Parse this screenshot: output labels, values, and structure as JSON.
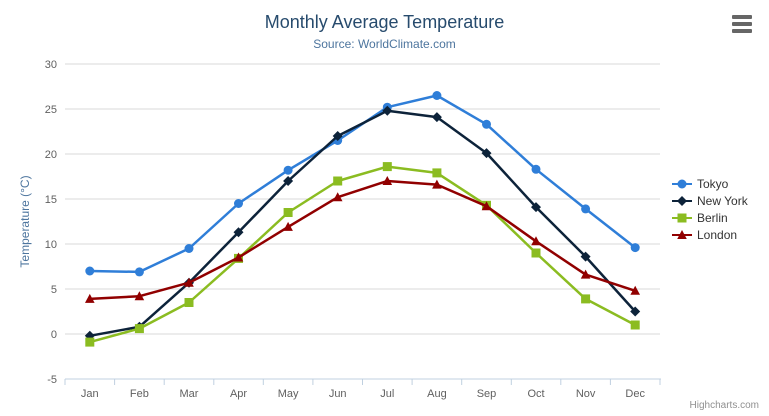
{
  "chart_data": {
    "type": "line",
    "title": "Monthly Average Temperature",
    "subtitle": "Source: WorldClimate.com",
    "xlabel": "",
    "ylabel": "Temperature (°C)",
    "categories": [
      "Jan",
      "Feb",
      "Mar",
      "Apr",
      "May",
      "Jun",
      "Jul",
      "Aug",
      "Sep",
      "Oct",
      "Nov",
      "Dec"
    ],
    "yticks": [
      -5,
      0,
      5,
      10,
      15,
      20,
      25,
      30
    ],
    "ylim": [
      -5,
      30
    ],
    "grid": true,
    "legend_position": "right",
    "series": [
      {
        "name": "Tokyo",
        "color": "#2f7ed8",
        "marker": "circle",
        "values": [
          7.0,
          6.9,
          9.5,
          14.5,
          18.2,
          21.5,
          25.2,
          26.5,
          23.3,
          18.3,
          13.9,
          9.6
        ]
      },
      {
        "name": "New York",
        "color": "#0d233a",
        "marker": "diamond",
        "values": [
          -0.2,
          0.8,
          5.7,
          11.3,
          17.0,
          22.0,
          24.8,
          24.1,
          20.1,
          14.1,
          8.6,
          2.5
        ]
      },
      {
        "name": "Berlin",
        "color": "#8bbc21",
        "marker": "square",
        "values": [
          -0.9,
          0.6,
          3.5,
          8.4,
          13.5,
          17.0,
          18.6,
          17.9,
          14.3,
          9.0,
          3.9,
          1.0
        ]
      },
      {
        "name": "London",
        "color": "#910000",
        "marker": "triangle",
        "values": [
          3.9,
          4.2,
          5.7,
          8.5,
          11.9,
          15.2,
          17.0,
          16.6,
          14.2,
          10.3,
          6.6,
          4.8
        ]
      }
    ]
  },
  "icons": {
    "context_menu": "hamburger-menu-icon"
  },
  "credits": {
    "label": "Highcharts.com"
  },
  "colors": {
    "title": "#274b6d",
    "subtitle": "#4d759e",
    "axis_title": "#4d759e",
    "axis_label": "#606060",
    "grid_line": "#d8d8d8",
    "axis_line": "#c0d0e0",
    "legend_text": "#333333",
    "credit": "#909090",
    "menu_icon": "#666666"
  }
}
